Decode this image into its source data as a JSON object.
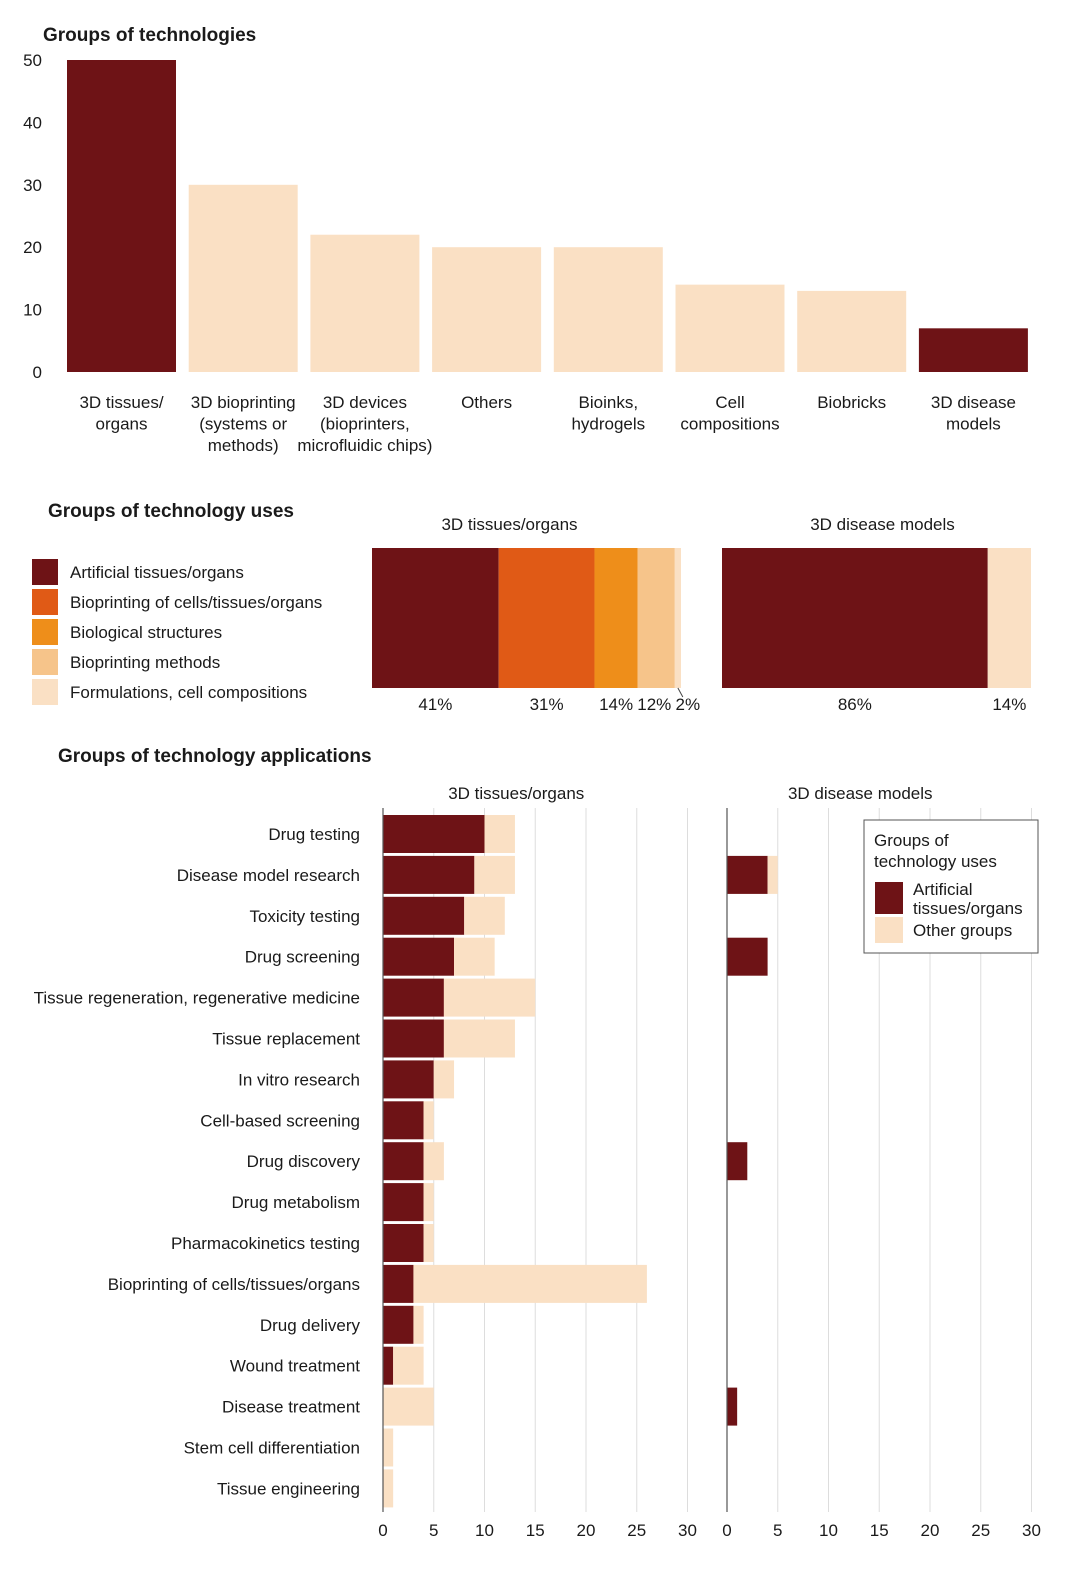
{
  "colors": {
    "dark_red": "#6e1316",
    "light_peach": "#fae0c4",
    "orange_red": "#e05a16",
    "orange": "#ee8e1a",
    "tan": "#f6c48a",
    "grid": "#dddddd",
    "axis": "#555555"
  },
  "chart_data": [
    {
      "id": "technologies",
      "type": "bar",
      "title": "Groups of technologies",
      "categories": [
        [
          "3D tissues/",
          "organs"
        ],
        [
          "3D bioprinting",
          "(systems or",
          "methods)"
        ],
        [
          "3D devices",
          "(bioprinters,",
          "microfluidic chips)"
        ],
        [
          "Others"
        ],
        [
          "Bioinks,",
          "hydrogels"
        ],
        [
          "Cell",
          "compositions"
        ],
        [
          "Biobricks"
        ],
        [
          "3D disease",
          "models"
        ]
      ],
      "values": [
        50,
        30,
        22,
        20,
        20,
        14,
        13,
        7
      ],
      "highlight": [
        true,
        false,
        false,
        false,
        false,
        false,
        false,
        true
      ],
      "ylim": [
        0,
        50
      ],
      "yticks": [
        0,
        10,
        20,
        30,
        40,
        50
      ],
      "xlabel": "",
      "ylabel": "",
      "grid": false
    },
    {
      "id": "uses",
      "type": "bar",
      "orientation": "stacked-100",
      "title": "Groups of technology uses",
      "legend": [
        "Artificial tissues/organs",
        "Bioprinting of cells/tissues/organs",
        "Biological structures",
        "Bioprinting methods",
        "Formulations, cell compositions"
      ],
      "legend_placement": "left",
      "panels": [
        {
          "title": "3D tissues/organs",
          "values": [
            41,
            31,
            14,
            12,
            2
          ],
          "labels": [
            "41%",
            "31%",
            "14%",
            "12%",
            "2%"
          ]
        },
        {
          "title": "3D disease models",
          "values": [
            86,
            14
          ],
          "labels": [
            "86%",
            "14%"
          ]
        }
      ]
    },
    {
      "id": "applications",
      "type": "bar",
      "orientation": "horizontal-stacked",
      "title": "Groups of technology applications",
      "categories": [
        "Drug testing",
        "Disease model research",
        "Toxicity testing",
        "Drug screening",
        "Tissue regeneration, regenerative medicine",
        "Tissue replacement",
        "In vitro research",
        "Cell-based screening",
        "Drug discovery",
        "Drug metabolism",
        "Pharmacokinetics testing",
        "Bioprinting of cells/tissues/organs",
        "Drug delivery",
        "Wound treatment",
        "Disease treatment",
        "Stem cell differentiation",
        "Tissue engineering"
      ],
      "xlim": [
        0,
        30
      ],
      "xticks": [
        0,
        5,
        10,
        15,
        20,
        25,
        30
      ],
      "grid": true,
      "legend_title": "Groups of technology uses",
      "legend": [
        "Artificial tissues/organs",
        "Other groups"
      ],
      "legend_placement": "top-right",
      "panels": [
        {
          "title": "3D tissues/organs",
          "series": [
            {
              "name": "Artificial tissues/organs",
              "values": [
                10,
                9,
                8,
                7,
                6,
                6,
                5,
                4,
                4,
                4,
                4,
                3,
                3,
                1,
                0,
                0,
                0
              ]
            },
            {
              "name": "Other groups",
              "values": [
                3,
                4,
                4,
                4,
                9,
                7,
                2,
                1,
                2,
                1,
                1,
                23,
                1,
                3,
                5,
                1,
                1
              ]
            }
          ]
        },
        {
          "title": "3D disease models",
          "series": [
            {
              "name": "Artificial tissues/organs",
              "values": [
                0,
                4,
                0,
                4,
                0,
                0,
                0,
                0,
                2,
                0,
                0,
                0,
                0,
                0,
                1,
                0,
                0
              ]
            },
            {
              "name": "Other groups",
              "values": [
                0,
                1,
                0,
                0,
                0,
                0,
                0,
                0,
                0,
                0,
                0,
                0,
                0,
                0,
                0,
                0,
                0
              ]
            }
          ]
        }
      ]
    }
  ]
}
